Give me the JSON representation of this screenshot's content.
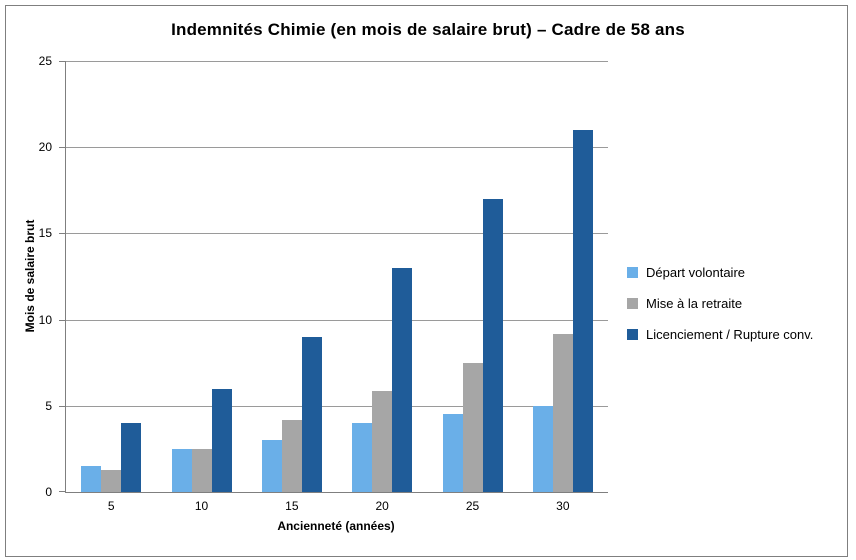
{
  "chart_data": {
    "type": "bar",
    "title": "Indemnités Chimie (en mois de salaire brut) – Cadre de 58 ans",
    "xlabel": "Ancienneté (années)",
    "ylabel": "Mois de salaire brut",
    "categories": [
      "5",
      "10",
      "15",
      "20",
      "25",
      "30"
    ],
    "series": [
      {
        "name": "Départ volontaire",
        "color": "#6AAFE8",
        "values": [
          1.5,
          2.5,
          3,
          4,
          4.5,
          5
        ]
      },
      {
        "name": "Mise à la retraite",
        "color": "#A6A6A6",
        "values": [
          1.25,
          2.5,
          4.17,
          5.83,
          7.5,
          9.17
        ]
      },
      {
        "name": "Licenciement / Rupture conv.",
        "color": "#1F5C99",
        "values": [
          4,
          6,
          9,
          13,
          17,
          21
        ]
      }
    ],
    "ylim": [
      0,
      25
    ],
    "yticks": [
      0,
      5,
      10,
      15,
      20,
      25
    ],
    "grid": "horizontal",
    "legend_position": "right"
  },
  "style": {
    "gridline_color": "#9A9A9A",
    "axis_color": "#7F7F7F",
    "border_color": "#7F7F7F",
    "background": "#FFFFFF",
    "text_color": "#000000"
  }
}
